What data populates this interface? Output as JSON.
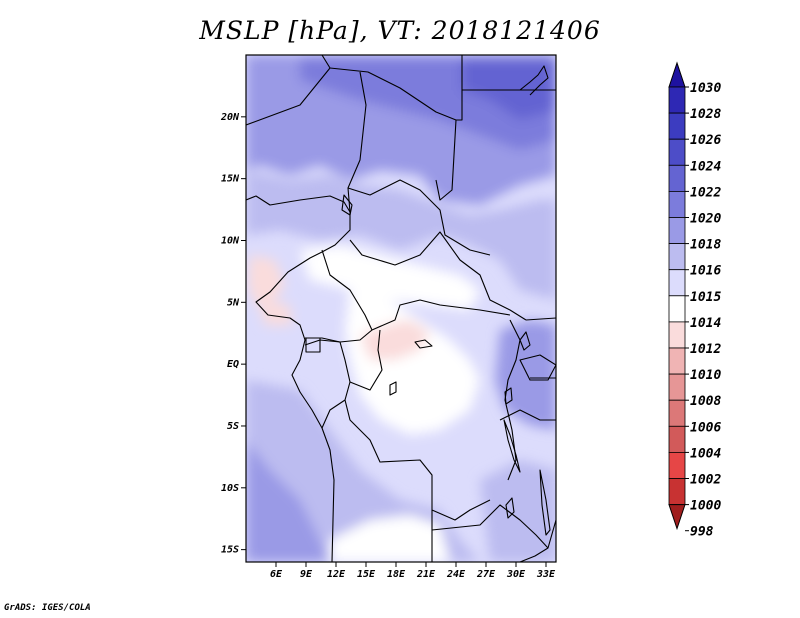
{
  "title": "MSLP [hPa], VT: 2018121406",
  "credit": "GrADS: IGES/COLA",
  "map": {
    "lon_range": [
      3,
      34
    ],
    "lat_range": [
      -16,
      25
    ],
    "x_ticks": [
      {
        "lon": 6,
        "label": "6E"
      },
      {
        "lon": 9,
        "label": "9E"
      },
      {
        "lon": 12,
        "label": "12E"
      },
      {
        "lon": 15,
        "label": "15E"
      },
      {
        "lon": 18,
        "label": "18E"
      },
      {
        "lon": 21,
        "label": "21E"
      },
      {
        "lon": 24,
        "label": "24E"
      },
      {
        "lon": 27,
        "label": "27E"
      },
      {
        "lon": 30,
        "label": "30E"
      },
      {
        "lon": 33,
        "label": "33E"
      }
    ],
    "y_ticks": [
      {
        "lat": 20,
        "label": "20N"
      },
      {
        "lat": 15,
        "label": "15N"
      },
      {
        "lat": 10,
        "label": "10N"
      },
      {
        "lat": 5,
        "label": "5N"
      },
      {
        "lat": 0,
        "label": "EQ"
      },
      {
        "lat": -5,
        "label": "5S"
      },
      {
        "lat": -10,
        "label": "10S"
      },
      {
        "lat": -15,
        "label": "15S"
      }
    ],
    "base_color": "#dcdcfc"
  },
  "colorbar": {
    "labels": [
      "1030",
      "1028",
      "1026",
      "1024",
      "1022",
      "1020",
      "1018",
      "1016",
      "1015",
      "1014",
      "1012",
      "1010",
      "1008",
      "1006",
      "1004",
      "1002",
      "1000",
      "998"
    ],
    "colors": [
      "#1e12a0",
      "#2e28b4",
      "#3c3cc0",
      "#4d4dc8",
      "#6464d2",
      "#7c7cdc",
      "#9a9ae6",
      "#bcbcf0",
      "#dcdcfc",
      "#ffffff",
      "#fadcdc",
      "#f0b4b4",
      "#e69696",
      "#dc7878",
      "#d25a5a",
      "#e64646",
      "#c83232",
      "#a01e1e"
    ]
  }
}
